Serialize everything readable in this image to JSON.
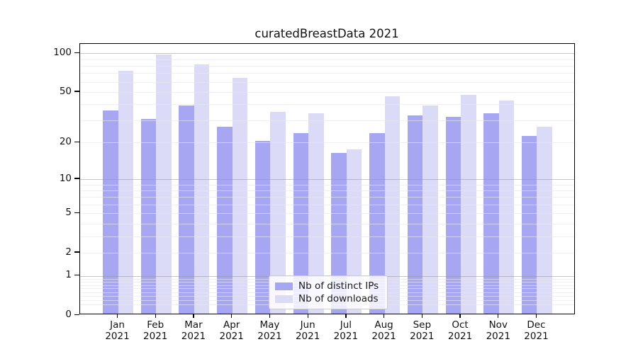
{
  "title": "curatedBreastData 2021",
  "chart_data": {
    "type": "bar",
    "title": "curatedBreastData 2021",
    "categories": [
      "Jan",
      "Feb",
      "Mar",
      "Apr",
      "May",
      "Jun",
      "Jul",
      "Aug",
      "Sep",
      "Oct",
      "Nov",
      "Dec"
    ],
    "category_year": "2021",
    "series": [
      {
        "name": "Nb of distinct IPs",
        "color": "#a6a6f2",
        "values": [
          35,
          30,
          38,
          26,
          20,
          23,
          16,
          23,
          32,
          31,
          33,
          22
        ]
      },
      {
        "name": "Nb of downloads",
        "color": "#dbdbf8",
        "values": [
          71,
          95,
          80,
          63,
          34,
          33,
          17,
          45,
          38,
          46,
          42,
          26
        ]
      }
    ],
    "yscale": "log1p",
    "ylim": [
      0,
      118
    ],
    "yticks": [
      0,
      1,
      2,
      5,
      10,
      20,
      50,
      100
    ],
    "grid_major": [
      1,
      10,
      100
    ],
    "grid_minor": [
      0.2,
      0.3,
      0.4,
      0.5,
      0.6,
      0.7,
      0.8,
      0.9,
      2,
      3,
      4,
      5,
      6,
      7,
      8,
      9,
      20,
      30,
      40,
      50,
      60,
      70,
      80,
      90
    ],
    "grid": "on",
    "legend_position": "lower center",
    "xlabel": "",
    "ylabel": ""
  }
}
